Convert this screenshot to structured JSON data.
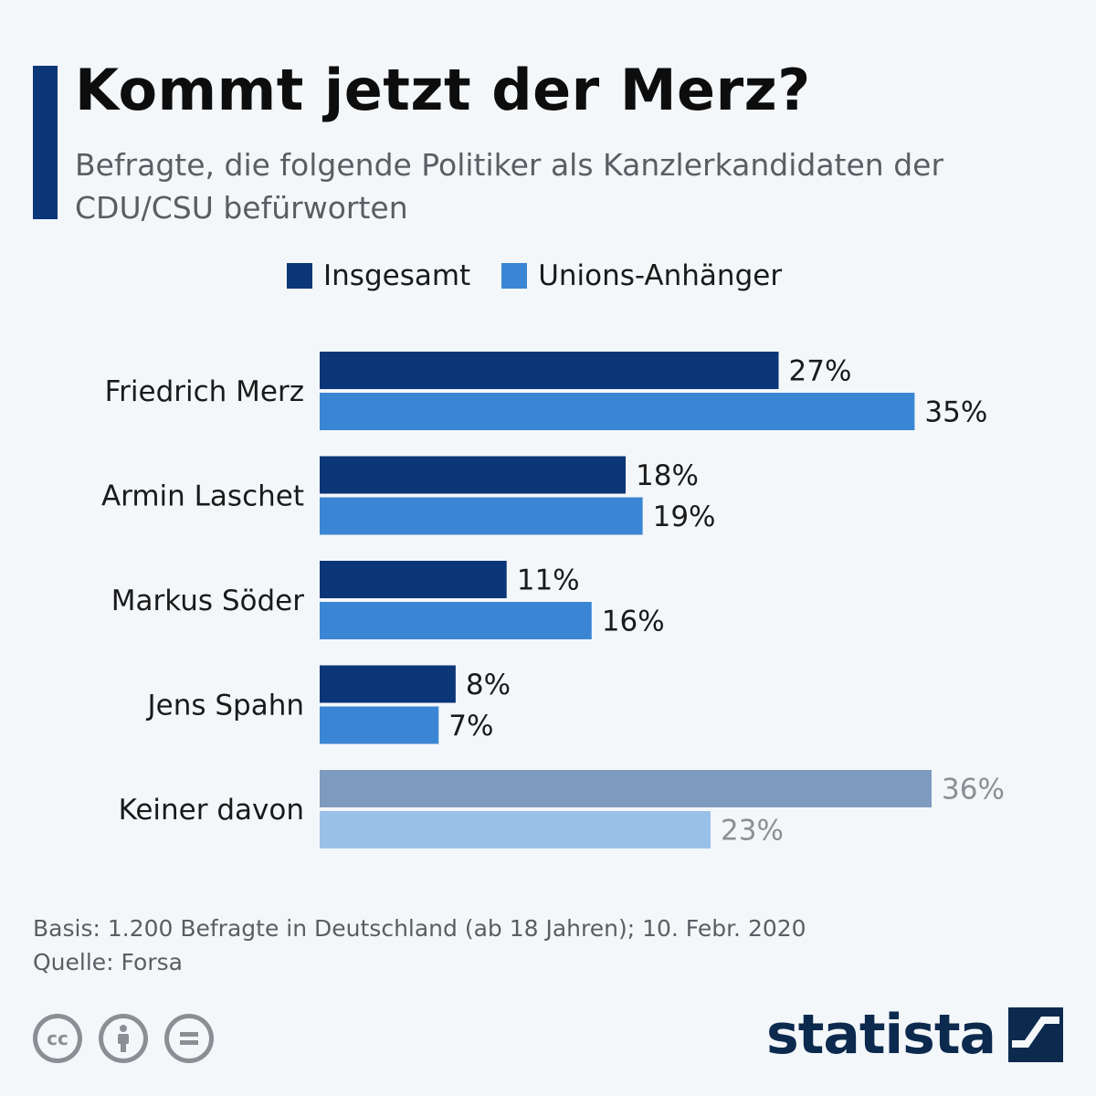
{
  "title": "Kommt jetzt der Merz?",
  "subtitle": "Befragte, die folgende Politiker als Kanzlerkandidaten der CDU/CSU befürworten",
  "legend": [
    {
      "label": "Insgesamt",
      "color": "#0b3677"
    },
    {
      "label": "Unions-Anhänger",
      "color": "#3b86d4"
    }
  ],
  "chart_data": {
    "type": "bar",
    "orientation": "horizontal",
    "categories": [
      "Friedrich Merz",
      "Armin Laschet",
      "Markus Söder",
      "Jens Spahn",
      "Keiner davon"
    ],
    "series": [
      {
        "name": "Insgesamt",
        "values": [
          27,
          18,
          11,
          8,
          36
        ],
        "labels": [
          "27%",
          "18%",
          "11%",
          "8%",
          "36%"
        ],
        "color": "#0b3677",
        "muted_color": "#7f9abf"
      },
      {
        "name": "Unions-Anhänger",
        "values": [
          35,
          19,
          16,
          7,
          23
        ],
        "labels": [
          "35%",
          "19%",
          "16%",
          "7%",
          "23%"
        ],
        "color": "#3b86d4",
        "muted_color": "#9bc0e7"
      }
    ],
    "muted_categories": [
      "Keiner davon"
    ],
    "xlim": [
      0,
      36
    ],
    "grid": false
  },
  "footer": {
    "basis": "Basis: 1.200 Befragte in Deutschland (ab 18 Jahren); 10. Febr. 2020",
    "source": "Quelle: Forsa"
  },
  "license_icons": [
    "cc-icon",
    "by-icon",
    "nd-icon"
  ],
  "brand": {
    "name": "statista",
    "color": "#0c2a4e"
  }
}
